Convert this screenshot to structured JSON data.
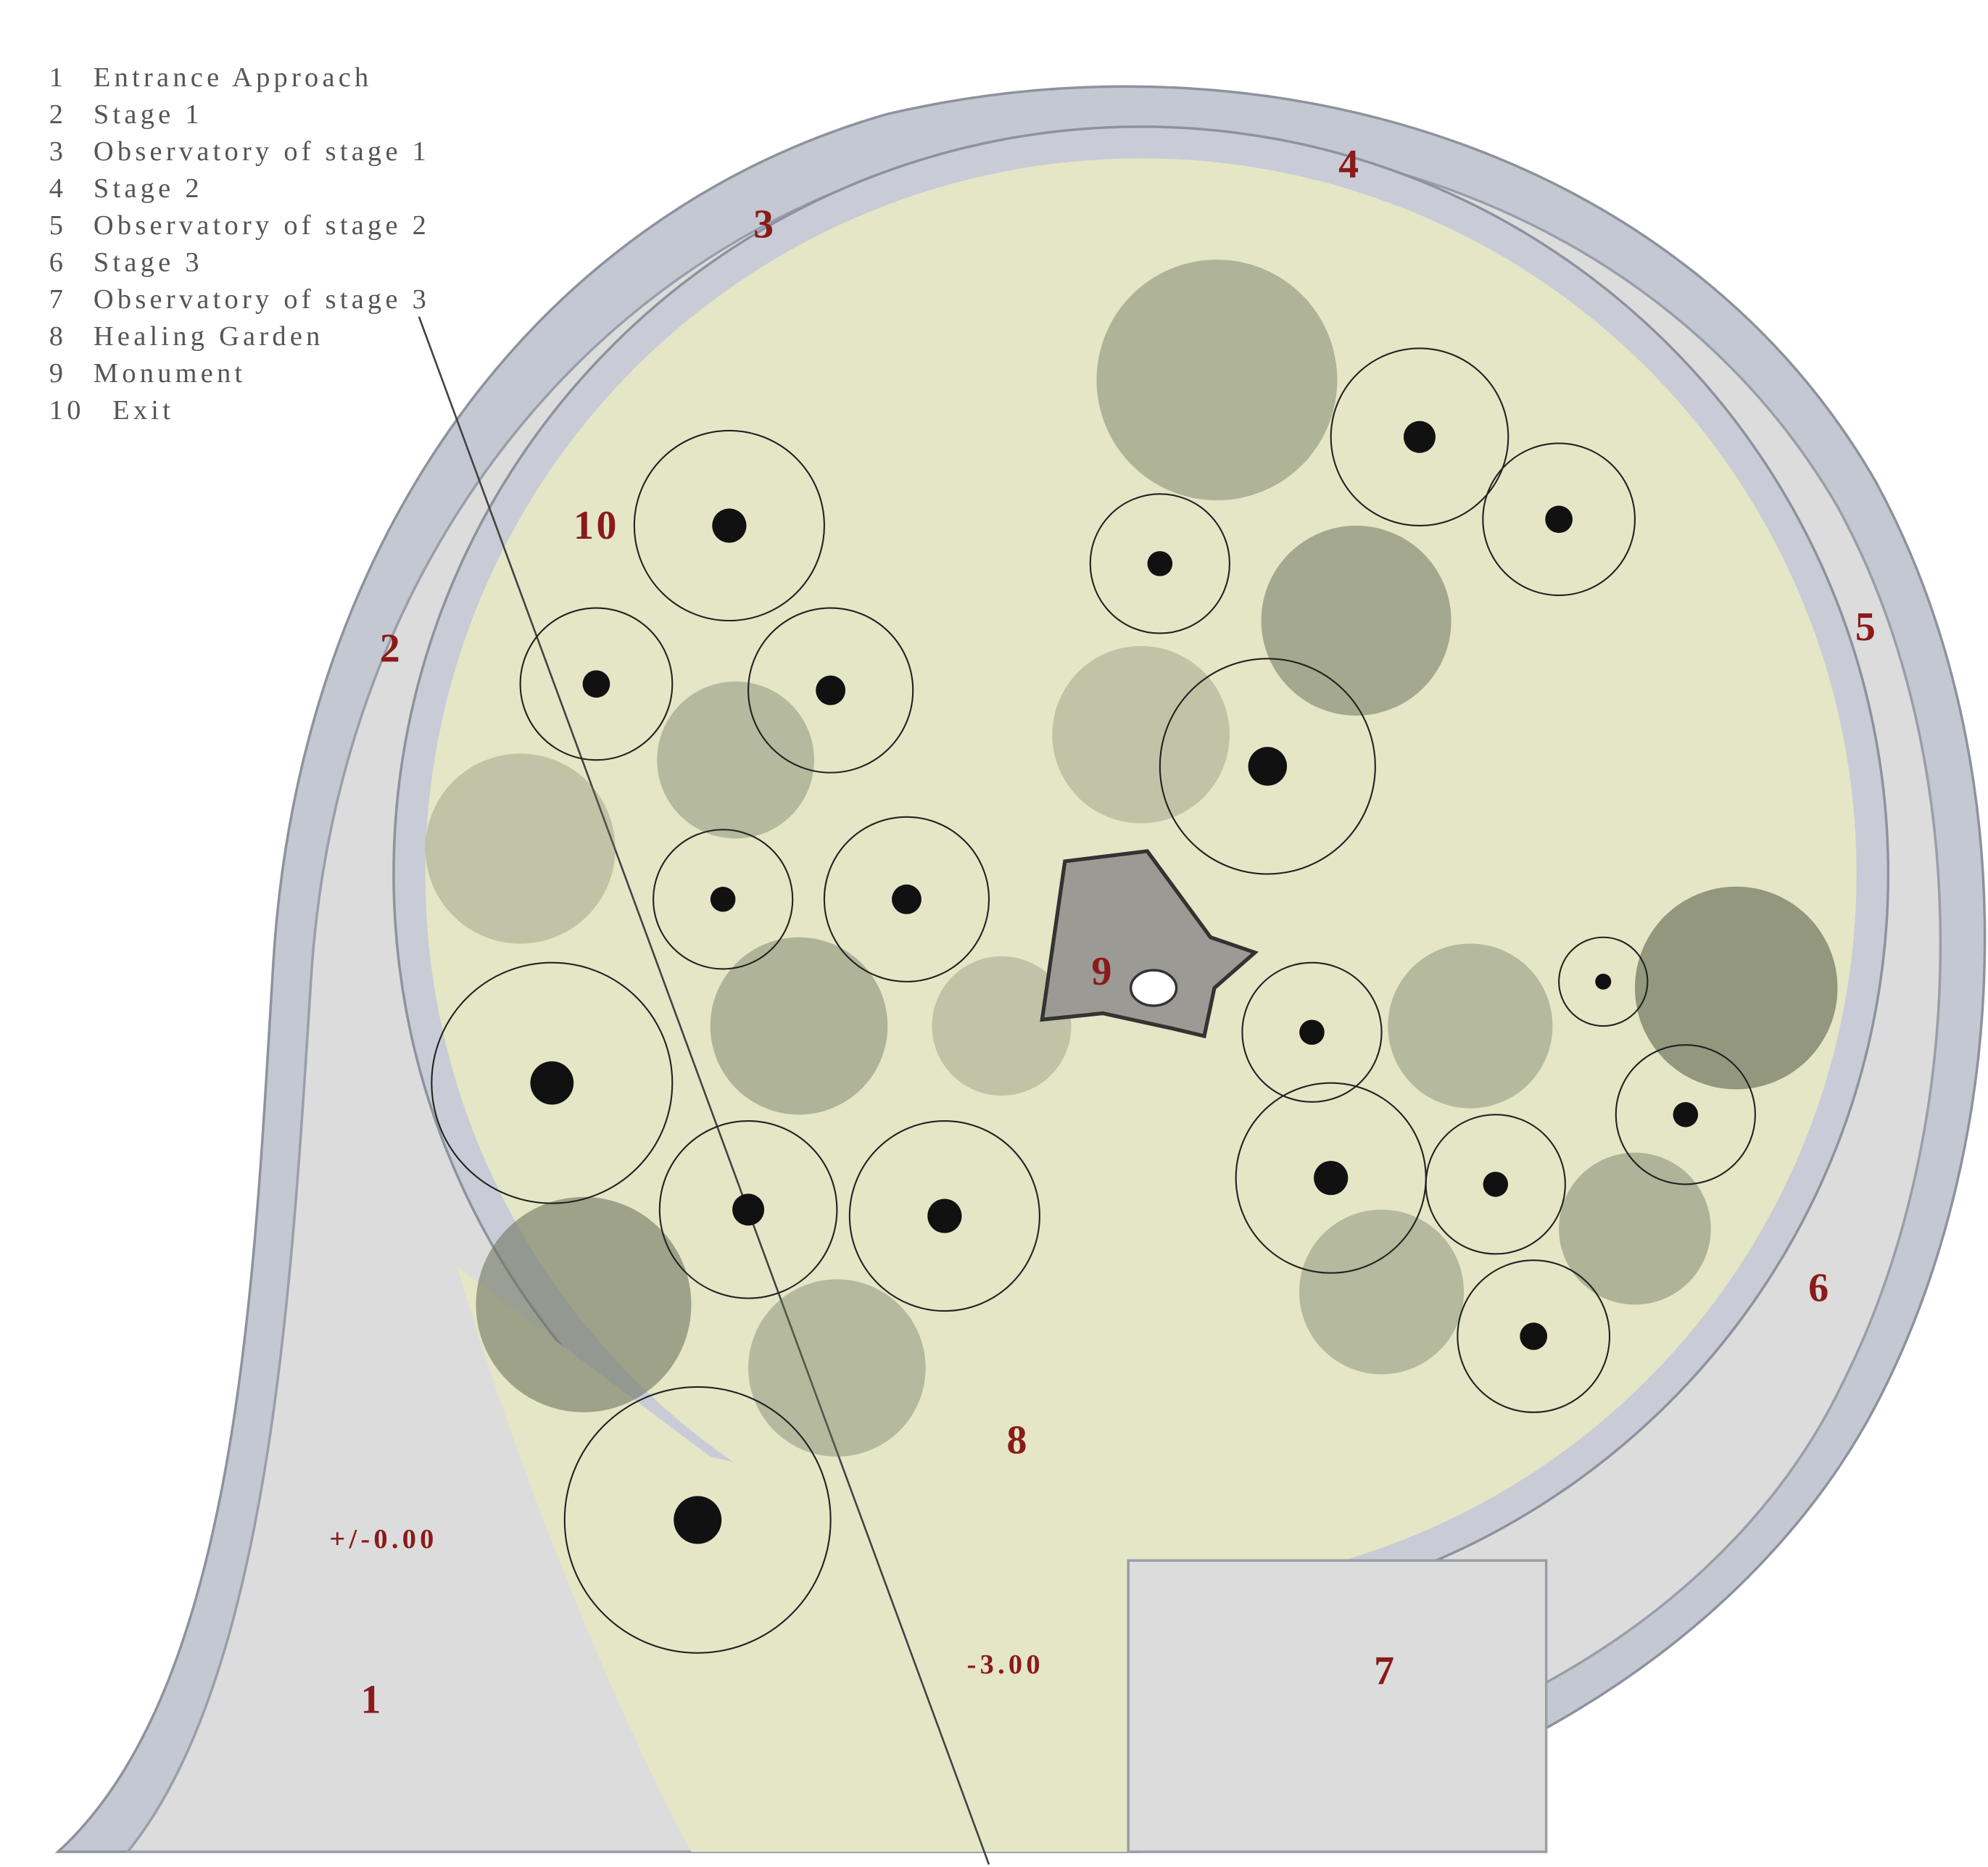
{
  "legend": [
    {
      "number": "1",
      "label": "Entrance Approach"
    },
    {
      "number": "2",
      "label": "Stage 1"
    },
    {
      "number": "3",
      "label": "Observatory of stage 1"
    },
    {
      "number": "4",
      "label": "Stage 2"
    },
    {
      "number": "5",
      "label": "Observatory of stage 2"
    },
    {
      "number": "6",
      "label": "Stage 3"
    },
    {
      "number": "7",
      "label": "Observatory of stage 3"
    },
    {
      "number": "8",
      "label": "Healing Garden"
    },
    {
      "number": "9",
      "label": "Monument"
    },
    {
      "number": "10",
      "label": "Exit"
    }
  ],
  "plan_labels": [
    "1",
    "2",
    "3",
    "4",
    "5",
    "6",
    "7",
    "8",
    "9",
    "10"
  ],
  "levels": [
    "+/-0.00",
    "-3.00"
  ]
}
